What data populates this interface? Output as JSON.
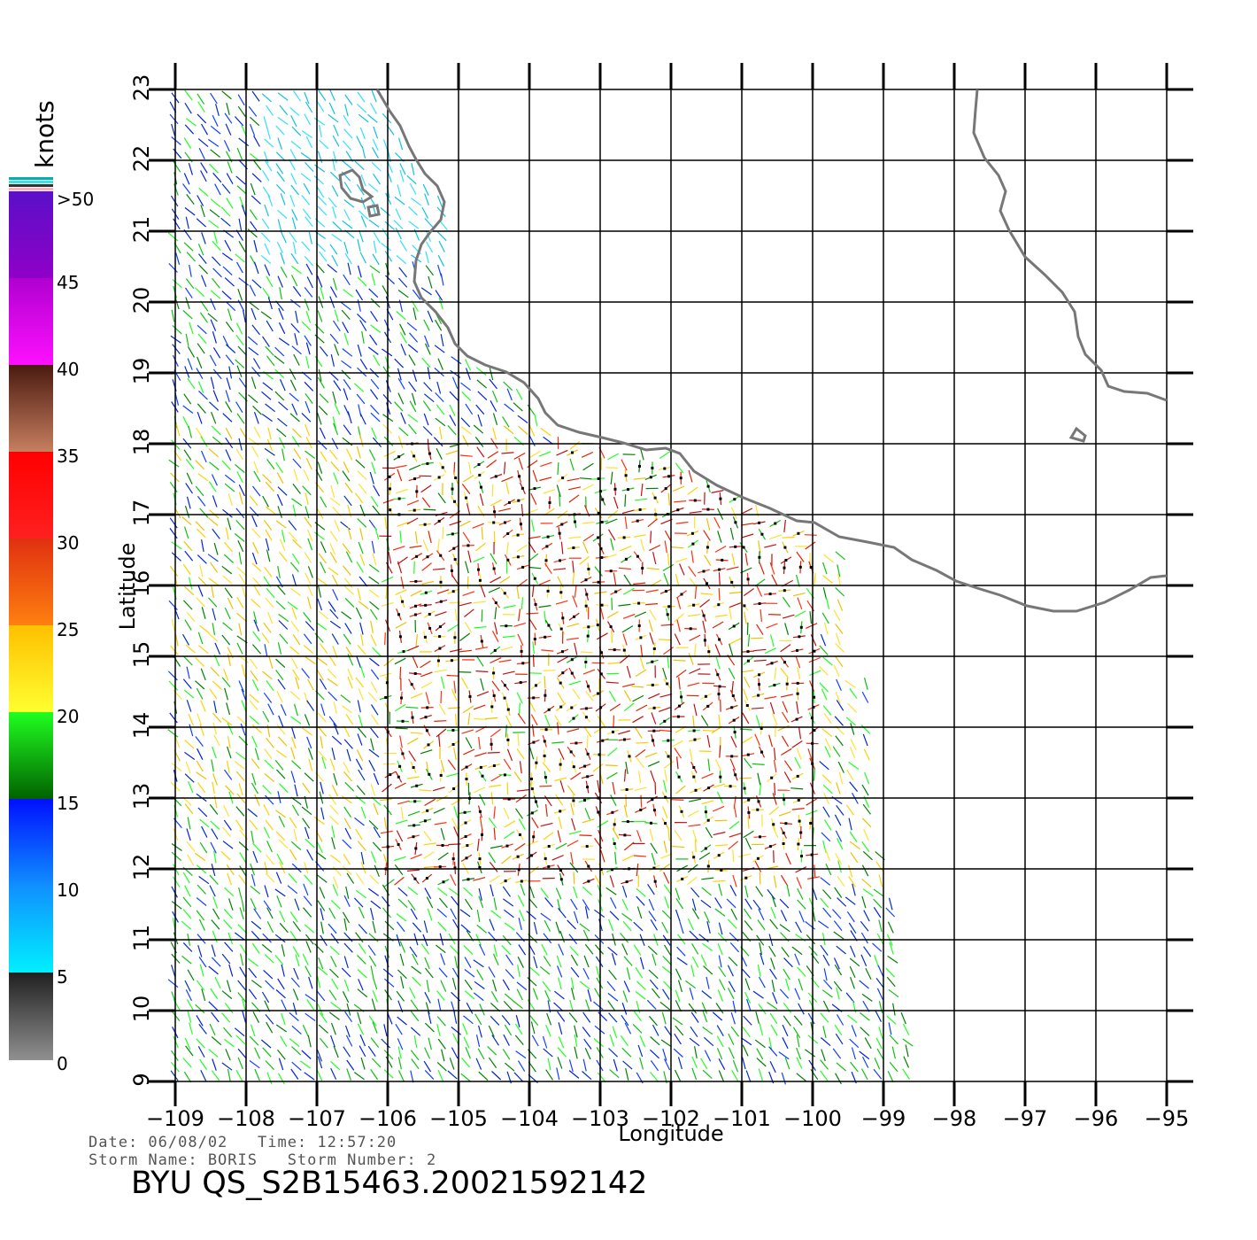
{
  "map": {
    "xlabel": "Longitude",
    "ylabel": "Latitude",
    "lon_range": [
      -109,
      -95
    ],
    "lat_range": [
      9,
      23
    ],
    "lon_ticks": [
      "−109",
      "−108",
      "−107",
      "−106",
      "−105",
      "−104",
      "−103",
      "−102",
      "−101",
      "−100",
      "−99",
      "−98",
      "−97",
      "−96",
      "−95"
    ],
    "lat_ticks": [
      "9",
      "10",
      "11",
      "12",
      "13",
      "14",
      "15",
      "16",
      "17",
      "18",
      "19",
      "20",
      "21",
      "22",
      "23"
    ],
    "grid": true,
    "coastline_color": "#777777"
  },
  "legend": {
    "unit": "knots",
    "labels": [
      ">50",
      "45",
      "40",
      "35",
      "30",
      "25",
      "20",
      "15",
      "10",
      "5",
      "0"
    ],
    "color_bands": [
      {
        "range": "45-50",
        "colors": [
          "#5a10c8",
          "#9000c8"
        ]
      },
      {
        "range": "40-45",
        "colors": [
          "#b000d0",
          "#ff10ff"
        ]
      },
      {
        "range": "35-40",
        "colors": [
          "#4a1a10",
          "#c88060"
        ]
      },
      {
        "range": "30-35",
        "colors": [
          "#ff0000",
          "#ff2020"
        ]
      },
      {
        "range": "25-30",
        "colors": [
          "#e03010",
          "#ff8010"
        ]
      },
      {
        "range": "20-25",
        "colors": [
          "#ffc000",
          "#ffff30"
        ]
      },
      {
        "range": "15-20",
        "colors": [
          "#20ff20",
          "#006000"
        ]
      },
      {
        "range": "10-15",
        "colors": [
          "#0010ff",
          "#1090ff"
        ]
      },
      {
        "range": "5-10",
        "colors": [
          "#1090ff",
          "#00f0ff"
        ]
      },
      {
        "range": "0-5",
        "colors": [
          "#202020",
          "#909090"
        ]
      }
    ]
  },
  "meta": {
    "line1": "Date: 06/08/02   Time: 12:57:20",
    "line2": "Storm Name: BORIS   Storm Number: 2",
    "product": "BYU QS_S2B15463.20021592142"
  }
}
